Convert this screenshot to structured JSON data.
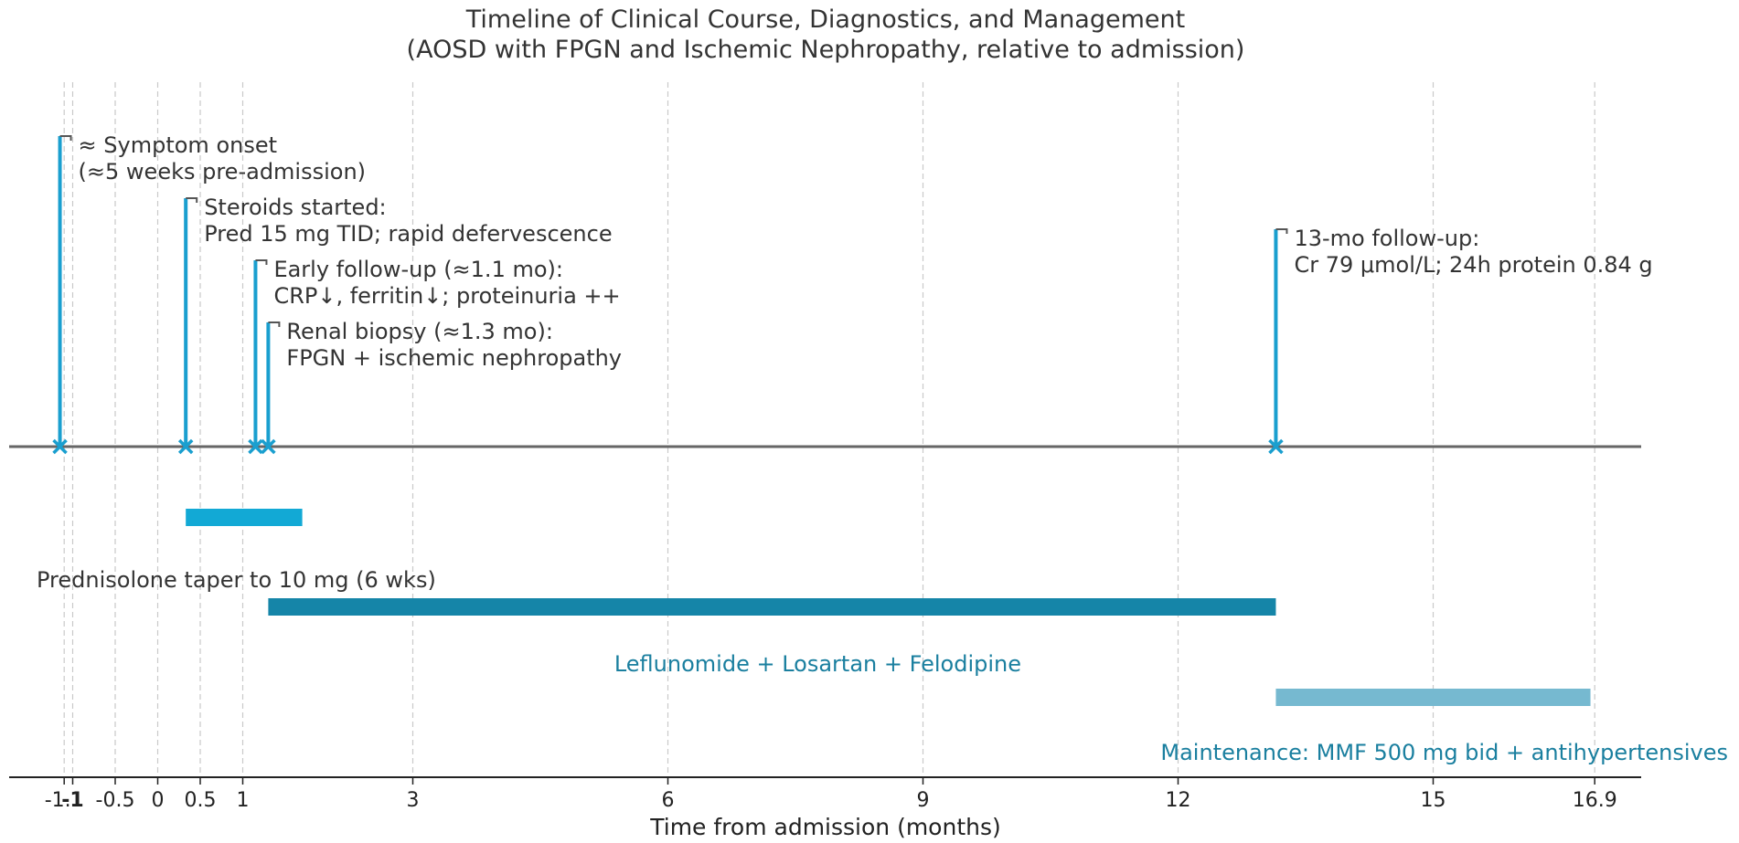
{
  "chart_data": {
    "type": "timeline",
    "title": [
      "Timeline of Clinical Course, Diagnostics, and Management",
      "(AOSD with FPGN and Ischemic Nephropathy, relative to admission)"
    ],
    "xlabel": "Time from admission (months)",
    "xlim": [
      -1.75,
      17.5
    ],
    "grid": "vertical dashed",
    "ticks": [
      {
        "value": -1.1,
        "label": "-1.1"
      },
      {
        "value": -1.0,
        "label": "-1"
      },
      {
        "value": -0.5,
        "label": "-0.5"
      },
      {
        "value": 0,
        "label": "0"
      },
      {
        "value": 0.5,
        "label": "0.5"
      },
      {
        "value": 1,
        "label": "1"
      },
      {
        "value": 3,
        "label": "3"
      },
      {
        "value": 6,
        "label": "6"
      },
      {
        "value": 9,
        "label": "9"
      },
      {
        "value": 12,
        "label": "12"
      },
      {
        "value": 15,
        "label": "15"
      },
      {
        "value": 16.9,
        "label": "16.9"
      }
    ],
    "events": [
      {
        "x": -1.15,
        "level": 1.0,
        "lines": [
          "≈ Symptom onset",
          "(≈5 weeks pre-admission)"
        ]
      },
      {
        "x": 0.33,
        "level": 0.8,
        "lines": [
          "Steroids started:",
          "Pred 15 mg TID; rapid defervescence"
        ]
      },
      {
        "x": 1.15,
        "level": 0.6,
        "lines": [
          "Early follow-up (≈1.1 mo):",
          "CRP↓, ferritin↓; proteinuria ++"
        ]
      },
      {
        "x": 1.3,
        "level": 0.4,
        "lines": [
          "Renal biopsy (≈1.3 mo):",
          "FPGN + ischemic nephropathy"
        ]
      },
      {
        "x": 13.15,
        "level": 0.7,
        "lines": [
          "13-mo follow-up:",
          "Cr 79 μmol/L; 24h protein 0.84 g"
        ]
      }
    ],
    "therapies": [
      {
        "start": 0.33,
        "end": 1.7,
        "label": "Prednisolone taper to 10 mg (6 wks)",
        "color": "#12a9d5",
        "label_color": "#333333"
      },
      {
        "start": 1.3,
        "end": 13.15,
        "label": "Leflunomide + Losartan + Felodipine",
        "color": "#1585a8",
        "label_color": "#1a7f9f"
      },
      {
        "start": 13.15,
        "end": 16.85,
        "label": "Maintenance: MMF 500 mg bid + antihypertensives",
        "color": "#76b9d0",
        "label_color": "#1a7f9f"
      }
    ],
    "colors": {
      "event": "#1a9fcf",
      "axis": "#666666",
      "grid": "#c9c9c9"
    }
  }
}
